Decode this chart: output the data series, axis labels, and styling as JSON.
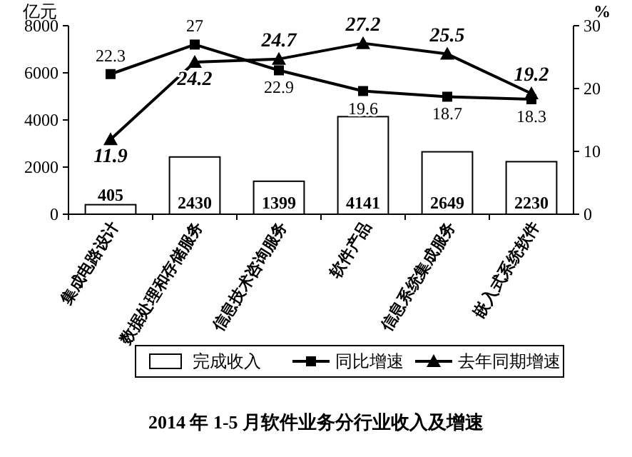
{
  "chart_data": {
    "type": "bar",
    "title": "2014 年 1-5 月软件业务分行业收入及增速",
    "ylabel": "亿元",
    "y2label": "%",
    "categories": [
      "集成电路设计",
      "数据处理和存储服务",
      "信息技术咨询服务",
      "软件产品",
      "信息系统集成服务",
      "嵌入式系统软件"
    ],
    "series": [
      {
        "name": "完成收入",
        "color": "#ffffff",
        "values": [
          405,
          2430,
          1399,
          4141,
          2649,
          2230
        ]
      },
      {
        "name": "同比增速",
        "type": "line",
        "axis": "y2",
        "color": "#000000",
        "marker": "square",
        "values": [
          22.3,
          27,
          22.9,
          19.6,
          18.7,
          18.3
        ]
      },
      {
        "name": "去年同期增速",
        "type": "line",
        "axis": "y2",
        "color": "#000000",
        "marker": "triangle",
        "values": [
          11.9,
          24.2,
          24.7,
          27.2,
          25.5,
          19.2
        ]
      }
    ],
    "ylim": [
      0,
      8000
    ],
    "yticks": [
      0,
      2000,
      4000,
      6000,
      8000
    ],
    "y2lim": [
      0,
      30
    ],
    "y2ticks": [
      0,
      10,
      20,
      30
    ],
    "data_labels": true,
    "legend": "bottom",
    "grid": false,
    "line_style": "solid"
  }
}
